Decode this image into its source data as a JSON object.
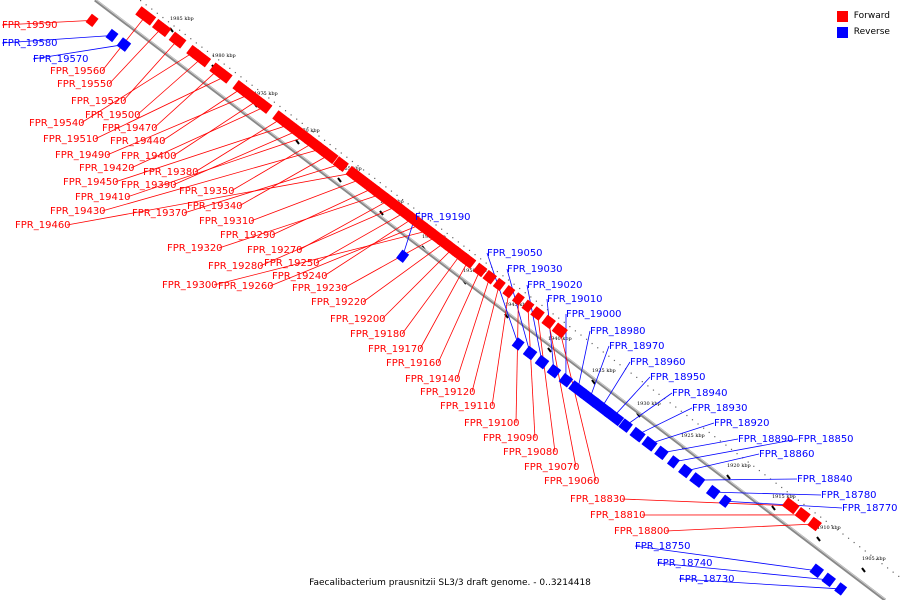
{
  "colors": {
    "forward": "#ff0000",
    "reverse": "#0000ff",
    "backbone": "#999999"
  },
  "legend": [
    {
      "label": "Forward",
      "strand": "forward"
    },
    {
      "label": "Reverse",
      "strand": "reverse"
    }
  ],
  "caption": "Faecalibacterium prausnitzii SL3/3 draft genome. - 0..3214418",
  "scale_labels": [
    "1985 kbp",
    "1980 kbp",
    "1975 kbp",
    "1970 kbp",
    "1965 kbp",
    "1960 kbp",
    "1955 kbp",
    "1950 kbp",
    "1945 kbp",
    "1940 kbp",
    "1935 kbp",
    "1930 kbp",
    "1925 kbp",
    "1920 kbp",
    "1915 kbp",
    "1910 kbp",
    "1905 kbp"
  ],
  "genes": [
    {
      "name": "FPR_19590",
      "strand": "forward"
    },
    {
      "name": "FPR_19580",
      "strand": "reverse"
    },
    {
      "name": "FPR_19570",
      "strand": "reverse"
    },
    {
      "name": "FPR_19560",
      "strand": "forward"
    },
    {
      "name": "FPR_19550",
      "strand": "forward"
    },
    {
      "name": "FPR_19520",
      "strand": "forward"
    },
    {
      "name": "FPR_19500",
      "strand": "forward"
    },
    {
      "name": "FPR_19540",
      "strand": "forward"
    },
    {
      "name": "FPR_19470",
      "strand": "forward"
    },
    {
      "name": "FPR_19510",
      "strand": "forward"
    },
    {
      "name": "FPR_19440",
      "strand": "forward"
    },
    {
      "name": "FPR_19490",
      "strand": "forward"
    },
    {
      "name": "FPR_19400",
      "strand": "forward"
    },
    {
      "name": "FPR_19420",
      "strand": "forward"
    },
    {
      "name": "FPR_19380",
      "strand": "forward"
    },
    {
      "name": "FPR_19450",
      "strand": "forward"
    },
    {
      "name": "FPR_19390",
      "strand": "forward"
    },
    {
      "name": "FPR_19410",
      "strand": "forward"
    },
    {
      "name": "FPR_19350",
      "strand": "forward"
    },
    {
      "name": "FPR_19430",
      "strand": "forward"
    },
    {
      "name": "FPR_19340",
      "strand": "forward"
    },
    {
      "name": "FPR_19370",
      "strand": "forward"
    },
    {
      "name": "FPR_19460",
      "strand": "forward"
    },
    {
      "name": "FPR_19310",
      "strand": "forward"
    },
    {
      "name": "FPR_19290",
      "strand": "forward"
    },
    {
      "name": "FPR_19320",
      "strand": "forward"
    },
    {
      "name": "FPR_19270",
      "strand": "forward"
    },
    {
      "name": "FPR_19280",
      "strand": "forward"
    },
    {
      "name": "FPR_19250",
      "strand": "forward"
    },
    {
      "name": "FPR_19240",
      "strand": "forward"
    },
    {
      "name": "FPR_19260",
      "strand": "forward"
    },
    {
      "name": "FPR_19300",
      "strand": "forward"
    },
    {
      "name": "FPR_19230",
      "strand": "forward"
    },
    {
      "name": "FPR_19220",
      "strand": "forward"
    },
    {
      "name": "FPR_19200",
      "strand": "forward"
    },
    {
      "name": "FPR_19180",
      "strand": "forward"
    },
    {
      "name": "FPR_19170",
      "strand": "forward"
    },
    {
      "name": "FPR_19160",
      "strand": "forward"
    },
    {
      "name": "FPR_19140",
      "strand": "forward"
    },
    {
      "name": "FPR_19120",
      "strand": "forward"
    },
    {
      "name": "FPR_19110",
      "strand": "forward"
    },
    {
      "name": "FPR_19190",
      "strand": "reverse"
    },
    {
      "name": "FPR_19050",
      "strand": "reverse"
    },
    {
      "name": "FPR_19030",
      "strand": "reverse"
    },
    {
      "name": "FPR_19020",
      "strand": "reverse"
    },
    {
      "name": "FPR_19010",
      "strand": "reverse"
    },
    {
      "name": "FPR_19000",
      "strand": "reverse"
    },
    {
      "name": "FPR_18980",
      "strand": "reverse"
    },
    {
      "name": "FPR_18970",
      "strand": "reverse"
    },
    {
      "name": "FPR_18960",
      "strand": "reverse"
    },
    {
      "name": "FPR_18950",
      "strand": "reverse"
    },
    {
      "name": "FPR_18940",
      "strand": "reverse"
    },
    {
      "name": "FPR_18930",
      "strand": "reverse"
    },
    {
      "name": "FPR_18920",
      "strand": "reverse"
    },
    {
      "name": "FPR_18890",
      "strand": "reverse"
    },
    {
      "name": "FPR_18850",
      "strand": "reverse"
    },
    {
      "name": "FPR_18860",
      "strand": "reverse"
    },
    {
      "name": "FPR_18840",
      "strand": "reverse"
    },
    {
      "name": "FPR_18780",
      "strand": "reverse"
    },
    {
      "name": "FPR_18770",
      "strand": "reverse"
    },
    {
      "name": "FPR_19100",
      "strand": "forward"
    },
    {
      "name": "FPR_19090",
      "strand": "forward"
    },
    {
      "name": "FPR_19080",
      "strand": "forward"
    },
    {
      "name": "FPR_19070",
      "strand": "forward"
    },
    {
      "name": "FPR_19060",
      "strand": "forward"
    },
    {
      "name": "FPR_18830",
      "strand": "forward"
    },
    {
      "name": "FPR_18810",
      "strand": "forward"
    },
    {
      "name": "FPR_18800",
      "strand": "forward"
    },
    {
      "name": "FPR_18750",
      "strand": "reverse"
    },
    {
      "name": "FPR_18740",
      "strand": "reverse"
    },
    {
      "name": "FPR_18730",
      "strand": "reverse"
    }
  ]
}
